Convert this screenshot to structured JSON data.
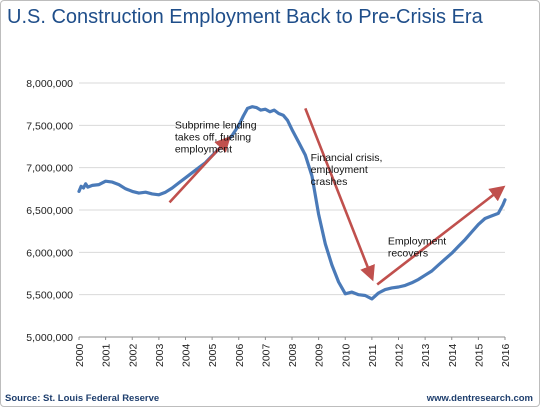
{
  "source_text": "Source: St. Louis Federal Reserve",
  "website_text": "www.dentresearch.com",
  "colors": {
    "line": "#4a7ab8",
    "arrow": "#c0504d",
    "title": "#1f4e8a",
    "grid": "#d9d9d9",
    "footer": "#1f3f6e"
  },
  "chart_data": {
    "type": "line",
    "title": "U.S. Construction Employment Back to Pre-Crisis Era",
    "xlabel": "",
    "ylabel": "",
    "ylim": [
      5000000,
      8000000
    ],
    "xlim": [
      2000,
      2016
    ],
    "grid": {
      "horizontal": true,
      "vertical": false
    },
    "y_ticks": [
      5000000,
      5500000,
      6000000,
      6500000,
      7000000,
      7500000,
      8000000
    ],
    "y_tick_labels": [
      "5,000,000",
      "5,500,000",
      "6,000,000",
      "6,500,000",
      "7,000,000",
      "7,500,000",
      "8,000,000"
    ],
    "x_ticks": [
      2000,
      2001,
      2002,
      2003,
      2004,
      2005,
      2006,
      2007,
      2008,
      2009,
      2010,
      2011,
      2012,
      2013,
      2014,
      2015,
      2016
    ],
    "x_tick_labels": [
      "2000",
      "2001",
      "2002",
      "2003",
      "2004",
      "2005",
      "2006",
      "2007",
      "2008",
      "2009",
      "2010",
      "2011",
      "2012",
      "2013",
      "2014",
      "2015",
      "2016"
    ],
    "series": [
      {
        "values_x": [
          2000.0,
          2000.08,
          2000.17,
          2000.25,
          2000.33,
          2000.5,
          2000.75,
          2001.0,
          2001.25,
          2001.5,
          2001.75,
          2002.0,
          2002.25,
          2002.5,
          2002.75,
          2003.0,
          2003.25,
          2003.5,
          2003.75,
          2004.0,
          2004.25,
          2004.5,
          2004.75,
          2005.0,
          2005.25,
          2005.5,
          2005.75,
          2006.0,
          2006.17,
          2006.33,
          2006.5,
          2006.67,
          2006.83,
          2007.0,
          2007.17,
          2007.33,
          2007.5,
          2007.67,
          2007.83,
          2008.0,
          2008.25,
          2008.5,
          2008.75,
          2009.0,
          2009.25,
          2009.5,
          2009.75,
          2010.0,
          2010.25,
          2010.5,
          2010.75,
          2011.0,
          2011.25,
          2011.5,
          2011.75,
          2012.0,
          2012.25,
          2012.5,
          2012.75,
          2013.0,
          2013.25,
          2013.5,
          2013.75,
          2014.0,
          2014.25,
          2014.5,
          2014.75,
          2015.0,
          2015.25,
          2015.5,
          2015.75,
          2015.92,
          2016.0
        ],
        "values": [
          6720000,
          6780000,
          6760000,
          6810000,
          6770000,
          6790000,
          6800000,
          6840000,
          6830000,
          6800000,
          6750000,
          6720000,
          6700000,
          6710000,
          6690000,
          6680000,
          6710000,
          6760000,
          6820000,
          6880000,
          6940000,
          7000000,
          7060000,
          7140000,
          7220000,
          7300000,
          7380000,
          7500000,
          7610000,
          7700000,
          7720000,
          7710000,
          7680000,
          7690000,
          7660000,
          7680000,
          7640000,
          7620000,
          7560000,
          7450000,
          7300000,
          7150000,
          6900000,
          6450000,
          6100000,
          5850000,
          5650000,
          5510000,
          5530000,
          5500000,
          5490000,
          5450000,
          5520000,
          5560000,
          5580000,
          5590000,
          5610000,
          5640000,
          5680000,
          5730000,
          5780000,
          5850000,
          5920000,
          5990000,
          6070000,
          6150000,
          6240000,
          6330000,
          6400000,
          6430000,
          6460000,
          6560000,
          6620000
        ]
      }
    ],
    "annotations": [
      {
        "lines": [
          "Subprime lending",
          "takes off, fueling",
          "employment"
        ],
        "x": 2003.6,
        "y": 7460000
      },
      {
        "lines": [
          "Financial crisis,",
          "employment",
          "crashes"
        ],
        "x": 2008.7,
        "y": 7080000
      },
      {
        "lines": [
          "Employment",
          "recovers"
        ],
        "x": 2011.6,
        "y": 6090000
      }
    ],
    "arrows": [
      {
        "from": [
          2003.4,
          6590000
        ],
        "to": [
          2005.6,
          7340000
        ]
      },
      {
        "from": [
          2008.5,
          7700000
        ],
        "to": [
          2011.0,
          5700000
        ]
      },
      {
        "from": [
          2011.2,
          5620000
        ],
        "to": [
          2015.9,
          6760000
        ]
      }
    ]
  }
}
